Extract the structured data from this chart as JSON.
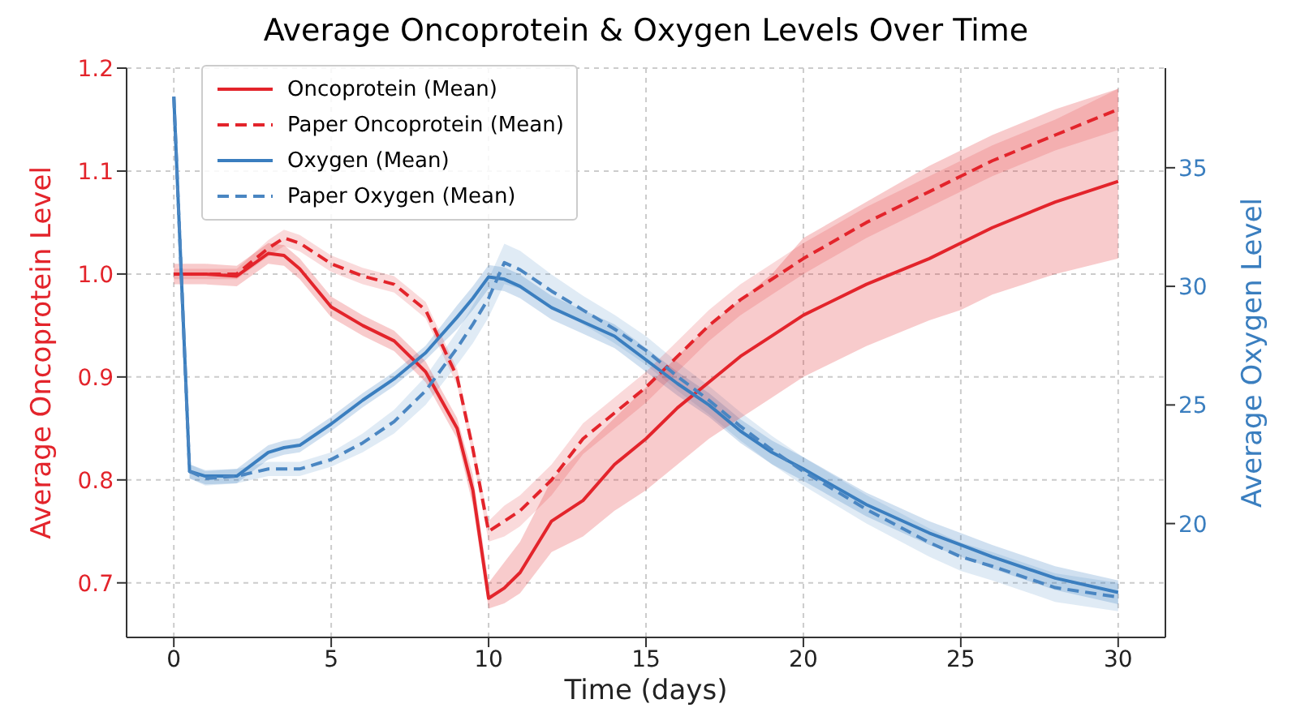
{
  "chart_data": {
    "type": "line",
    "title": "Average Oncoprotein & Oxygen Levels Over Time",
    "xlabel": "Time (days)",
    "ylabel": "Average Oncoprotein Level",
    "y2label": "Average Oxygen Level",
    "x": [
      0,
      0.5,
      1,
      2,
      3,
      3.5,
      4,
      5,
      6,
      7,
      8,
      9,
      9.5,
      10,
      10.5,
      11,
      12,
      13,
      14,
      15,
      16,
      17,
      18,
      19,
      20,
      22,
      24,
      25,
      26,
      28,
      30
    ],
    "series": [
      {
        "name": "Oncoprotein (Mean)",
        "color": "#e3242b",
        "line_style": "solid",
        "values": [
          1.0,
          1.0,
          1.0,
          0.998,
          1.02,
          1.018,
          1.005,
          0.968,
          0.95,
          0.935,
          0.905,
          0.85,
          0.79,
          0.685,
          0.695,
          0.71,
          0.76,
          0.78,
          0.815,
          0.84,
          0.87,
          0.895,
          0.92,
          0.94,
          0.96,
          0.99,
          1.015,
          1.03,
          1.045,
          1.07,
          1.09
        ],
        "lower": [
          0.99,
          0.99,
          0.99,
          0.988,
          1.01,
          1.008,
          0.995,
          0.958,
          0.94,
          0.925,
          0.895,
          0.84,
          0.775,
          0.675,
          0.68,
          0.69,
          0.73,
          0.745,
          0.77,
          0.79,
          0.815,
          0.84,
          0.86,
          0.88,
          0.9,
          0.93,
          0.955,
          0.965,
          0.98,
          1.0,
          1.015
        ],
        "upper": [
          1.01,
          1.01,
          1.01,
          1.008,
          1.03,
          1.028,
          1.015,
          0.978,
          0.96,
          0.945,
          0.915,
          0.86,
          0.805,
          0.7,
          0.72,
          0.74,
          0.8,
          0.83,
          0.86,
          0.89,
          0.92,
          0.95,
          0.975,
          1.0,
          1.035,
          1.07,
          1.105,
          1.12,
          1.135,
          1.16,
          1.18
        ]
      },
      {
        "name": "Paper Oncoprotein (Mean)",
        "color": "#e3242b",
        "line_style": "dashed",
        "values": [
          1.0,
          1.0,
          1.0,
          1.0,
          1.025,
          1.035,
          1.03,
          1.01,
          0.998,
          0.99,
          0.965,
          0.9,
          0.83,
          0.75,
          0.76,
          0.77,
          0.8,
          0.84,
          0.865,
          0.89,
          0.92,
          0.95,
          0.975,
          0.995,
          1.015,
          1.05,
          1.08,
          1.095,
          1.11,
          1.135,
          1.16
        ],
        "lower": [
          0.995,
          0.995,
          0.995,
          0.995,
          1.017,
          1.027,
          1.022,
          1.002,
          0.99,
          0.982,
          0.957,
          0.892,
          0.822,
          0.74,
          0.745,
          0.755,
          0.785,
          0.825,
          0.85,
          0.875,
          0.905,
          0.935,
          0.96,
          0.98,
          1.0,
          1.035,
          1.065,
          1.08,
          1.095,
          1.12,
          1.14
        ],
        "upper": [
          1.005,
          1.005,
          1.005,
          1.005,
          1.033,
          1.043,
          1.038,
          1.018,
          1.006,
          0.998,
          0.973,
          0.908,
          0.838,
          0.76,
          0.775,
          0.785,
          0.815,
          0.855,
          0.88,
          0.905,
          0.935,
          0.965,
          0.99,
          1.01,
          1.03,
          1.065,
          1.095,
          1.11,
          1.125,
          1.15,
          1.18
        ]
      },
      {
        "name": "Oxygen (Mean)",
        "color": "#3a7ebf",
        "line_style": "solid",
        "axis": "y2",
        "values": [
          38.0,
          22.2,
          22.0,
          22.0,
          23.0,
          23.2,
          23.3,
          24.2,
          25.2,
          26.1,
          27.2,
          28.7,
          29.5,
          30.4,
          30.3,
          30.0,
          29.1,
          28.5,
          27.9,
          26.9,
          25.9,
          25.0,
          23.9,
          23.0,
          22.3,
          20.8,
          19.6,
          19.1,
          18.6,
          17.7,
          17.1
        ],
        "lower": [
          null,
          21.9,
          21.65,
          21.7,
          22.7,
          22.9,
          23.0,
          23.9,
          24.9,
          25.8,
          26.9,
          28.2,
          29.0,
          29.9,
          29.8,
          29.5,
          28.6,
          28.0,
          27.4,
          26.4,
          25.4,
          24.5,
          23.4,
          22.5,
          21.8,
          20.3,
          19.1,
          18.6,
          18.1,
          17.2,
          16.6
        ],
        "upper": [
          null,
          22.5,
          22.25,
          22.3,
          23.3,
          23.5,
          23.6,
          24.5,
          25.5,
          26.4,
          27.5,
          29.2,
          30.0,
          30.9,
          30.8,
          30.5,
          29.6,
          29.0,
          28.4,
          27.4,
          26.4,
          25.5,
          24.4,
          23.5,
          22.8,
          21.3,
          20.1,
          19.6,
          19.1,
          18.2,
          17.6
        ]
      },
      {
        "name": "Paper Oxygen (Mean)",
        "color": "#4a86c2",
        "line_style": "dashed",
        "axis": "y2",
        "values": [
          38.0,
          22.2,
          21.9,
          22.0,
          22.3,
          22.3,
          22.3,
          22.7,
          23.4,
          24.3,
          25.6,
          27.4,
          28.4,
          29.5,
          31.0,
          30.7,
          29.8,
          29.0,
          28.2,
          27.3,
          26.2,
          25.2,
          24.1,
          23.1,
          22.2,
          20.6,
          19.2,
          18.6,
          18.2,
          17.3,
          16.9
        ],
        "lower": [
          null,
          21.9,
          21.6,
          21.7,
          22.0,
          22.0,
          22.0,
          22.4,
          23.0,
          23.8,
          25.0,
          26.7,
          27.6,
          28.7,
          30.1,
          29.9,
          29.1,
          28.4,
          27.6,
          26.7,
          25.6,
          24.6,
          23.5,
          22.5,
          21.6,
          20.0,
          18.6,
          18.0,
          17.6,
          16.7,
          16.3
        ],
        "upper": [
          null,
          22.5,
          22.2,
          22.3,
          22.6,
          22.6,
          22.6,
          23.0,
          23.8,
          24.8,
          26.2,
          28.1,
          29.2,
          30.3,
          31.8,
          31.5,
          30.5,
          29.6,
          28.8,
          27.9,
          26.8,
          25.8,
          24.7,
          23.7,
          22.8,
          21.2,
          19.8,
          19.2,
          18.8,
          17.9,
          17.5
        ]
      }
    ],
    "xlim": [
      -1.5,
      31.5
    ],
    "xticks": [
      0,
      5,
      10,
      15,
      20,
      25,
      30
    ],
    "ylim": [
      0.647,
      1.2
    ],
    "yticks": [
      0.7,
      0.8,
      0.9,
      {
        "value": 1,
        "label": "1.0"
      },
      1.1,
      1.2
    ],
    "y2lim": [
      15.2,
      39.2
    ],
    "y2ticks": [
      20,
      25,
      30,
      35
    ],
    "grid": true,
    "legend": "top left",
    "marker": "none"
  }
}
